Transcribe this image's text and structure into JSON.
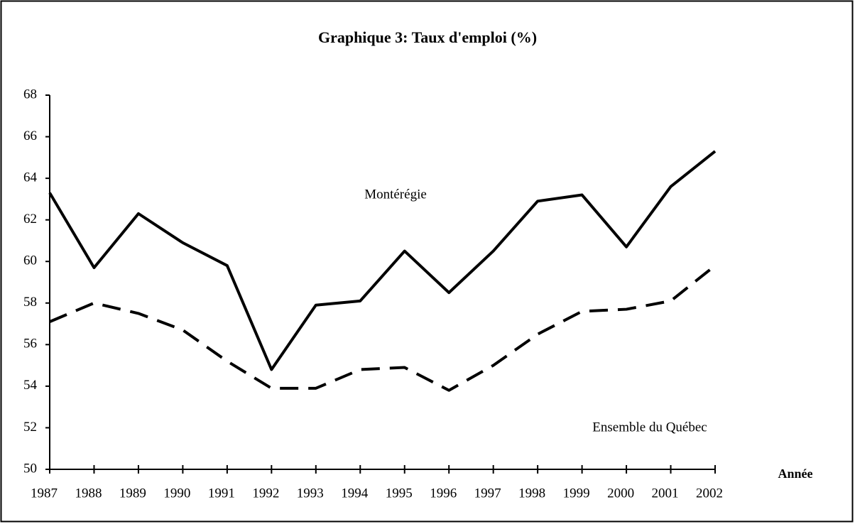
{
  "chart_data": {
    "type": "line",
    "title": "Graphique 3: Taux d'emploi (%)",
    "x_label": "Année",
    "x": [
      1987,
      1988,
      1989,
      1990,
      1991,
      1992,
      1993,
      1994,
      1995,
      1996,
      1997,
      1998,
      1999,
      2000,
      2001,
      2002
    ],
    "xlim": [
      1987,
      2002
    ],
    "xticks": [
      1987,
      1988,
      1989,
      1990,
      1991,
      1992,
      1993,
      1994,
      1995,
      1996,
      1997,
      1998,
      1999,
      2000,
      2001,
      2002
    ],
    "ylim": [
      50,
      68
    ],
    "yticks": [
      50,
      52,
      54,
      56,
      58,
      60,
      62,
      64,
      66,
      68
    ],
    "series": [
      {
        "name": "Montérégie",
        "color": "#000000",
        "dash": "solid",
        "values": [
          63.3,
          59.7,
          62.3,
          60.9,
          59.8,
          54.8,
          57.9,
          58.1,
          60.5,
          58.5,
          60.5,
          62.9,
          63.2,
          60.7,
          63.6,
          65.3
        ]
      },
      {
        "name": "Ensemble du Québec",
        "color": "#000000",
        "dash": "dashed",
        "values": [
          57.1,
          58.0,
          57.5,
          56.7,
          55.2,
          53.9,
          53.9,
          54.8,
          54.9,
          53.8,
          55.0,
          56.5,
          57.6,
          57.7,
          58.1,
          59.8
        ]
      }
    ]
  }
}
